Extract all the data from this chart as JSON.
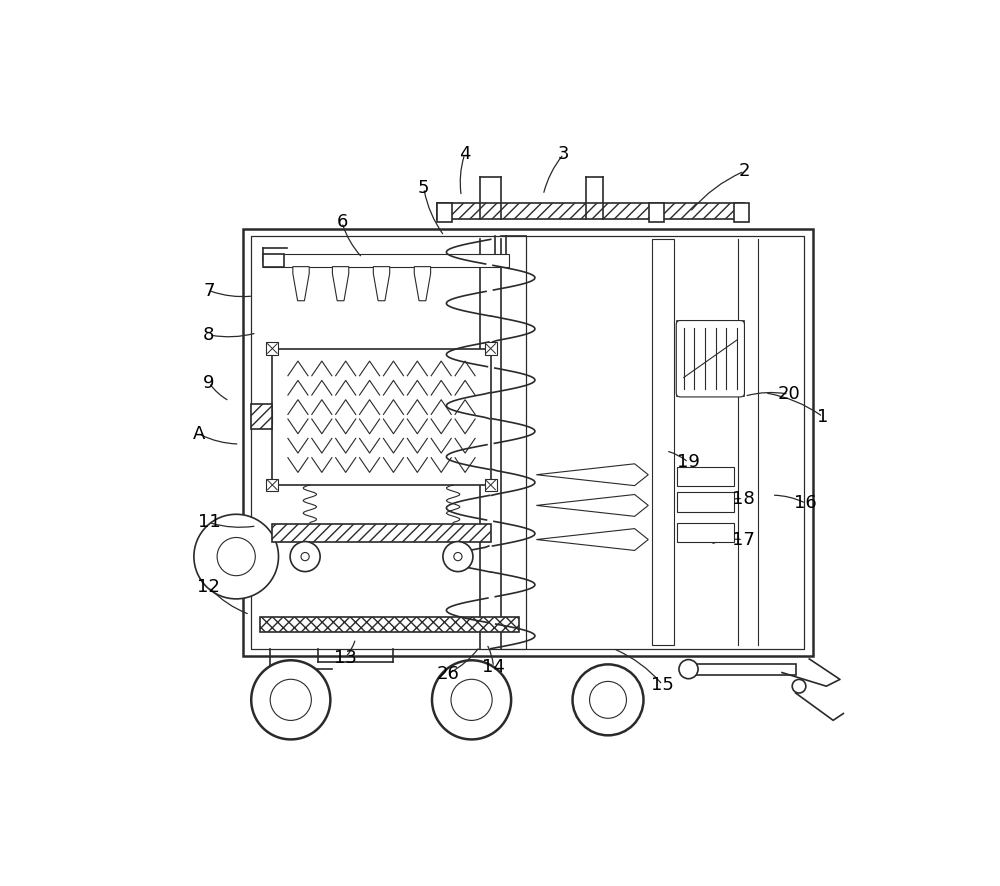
{
  "bg_color": "#ffffff",
  "line_color": "#2a2a2a",
  "fig_width": 10.0,
  "fig_height": 8.86,
  "label_fontsize": 13,
  "label_positions": {
    "1": [
      0.955,
      0.545,
      0.87,
      0.58
    ],
    "2": [
      0.84,
      0.905,
      0.76,
      0.845
    ],
    "3": [
      0.575,
      0.93,
      0.545,
      0.87
    ],
    "4": [
      0.43,
      0.93,
      0.425,
      0.868
    ],
    "5": [
      0.37,
      0.88,
      0.4,
      0.81
    ],
    "6": [
      0.25,
      0.83,
      0.28,
      0.778
    ],
    "7": [
      0.055,
      0.73,
      0.12,
      0.722
    ],
    "8": [
      0.055,
      0.665,
      0.125,
      0.668
    ],
    "9": [
      0.055,
      0.595,
      0.085,
      0.568
    ],
    "A": [
      0.04,
      0.52,
      0.1,
      0.505
    ],
    "11": [
      0.055,
      0.39,
      0.125,
      0.385
    ],
    "12": [
      0.055,
      0.295,
      0.115,
      0.255
    ],
    "13": [
      0.255,
      0.192,
      0.27,
      0.22
    ],
    "14": [
      0.472,
      0.178,
      0.462,
      0.212
    ],
    "15": [
      0.72,
      0.152,
      0.648,
      0.205
    ],
    "16": [
      0.93,
      0.418,
      0.88,
      0.43
    ],
    "17": [
      0.838,
      0.365,
      0.79,
      0.358
    ],
    "18": [
      0.838,
      0.425,
      0.79,
      0.415
    ],
    "19": [
      0.758,
      0.478,
      0.725,
      0.495
    ],
    "20": [
      0.905,
      0.578,
      0.84,
      0.575
    ],
    "26": [
      0.405,
      0.168,
      0.452,
      0.208
    ]
  }
}
